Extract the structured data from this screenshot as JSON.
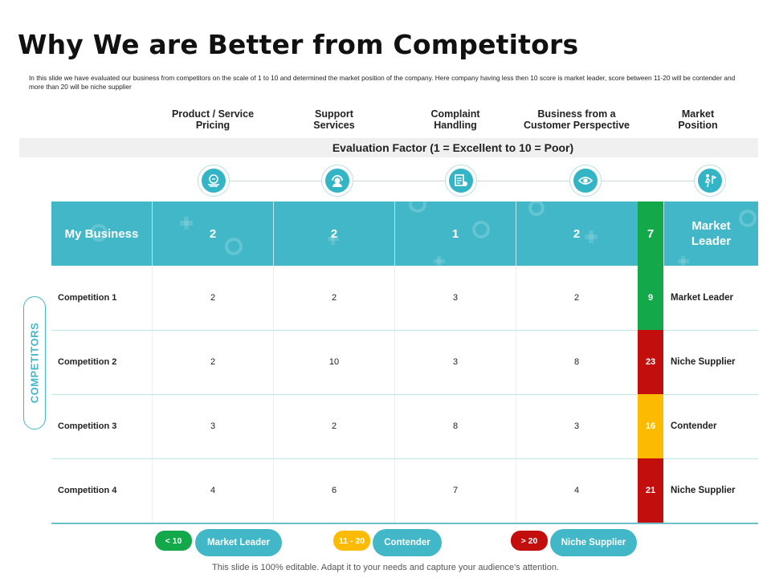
{
  "title": "Why We are Better from Competitors",
  "description": "In this slide we have evaluated our business from competitors on the scale of 1 to 10 and determined the market position of the company. Here company having less then 10 score is market leader, score between 11-20 will be contender and more than 20 will be niche supplier",
  "columns": [
    "Product / Service\nPricing",
    "Support\nServices",
    "Complaint\nHandling",
    "Business from a\nCustomer Perspective",
    "Market\nPosition"
  ],
  "evaluation_label": "Evaluation Factor (1 = Excellent to 10 = Poor)",
  "icons": [
    "pricing-icon",
    "support-headset-icon",
    "complaint-icon",
    "customer-eye-icon",
    "market-position-icon"
  ],
  "my_business": {
    "label": "My Business",
    "values": [
      "2",
      "2",
      "1",
      "2"
    ],
    "score": "7",
    "position": "Market\nLeader"
  },
  "competitors_label": "COMPETITORS",
  "rows": [
    {
      "label": "Competition 1",
      "values": [
        "2",
        "2",
        "3",
        "2"
      ],
      "score": "9",
      "position": "Market Leader"
    },
    {
      "label": "Competition 2",
      "values": [
        "2",
        "10",
        "3",
        "8"
      ],
      "score": "23",
      "position": "Niche Supplier"
    },
    {
      "label": "Competition 3",
      "values": [
        "3",
        "2",
        "8",
        "3"
      ],
      "score": "16",
      "position": "Contender"
    },
    {
      "label": "Competition 4",
      "values": [
        "4",
        "6",
        "7",
        "4"
      ],
      "score": "21",
      "position": "Niche Supplier"
    }
  ],
  "colors": {
    "accent": "#41b7c8",
    "green": "#13a84a",
    "red": "#c30e0e",
    "yellow": "#fdbb00"
  },
  "legend": [
    {
      "range": "< 10",
      "label": "Market Leader"
    },
    {
      "range": "11 - 20",
      "label": "Contender"
    },
    {
      "range": "> 20",
      "label": "Niche Supplier"
    }
  ],
  "footer": "This slide is 100% editable. Adapt it to your needs and capture your audience's attention."
}
